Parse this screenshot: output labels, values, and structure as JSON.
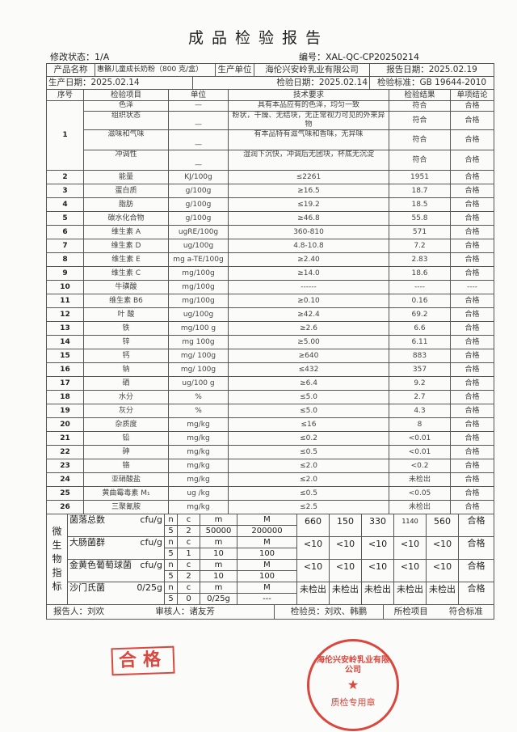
{
  "title": "成品检验报告",
  "revision": "修改状态：1/A",
  "doc_no": "编号：XAL-QC-CP20250214",
  "info": {
    "product_label": "产品名称",
    "product_value": "惠骼儿童成长奶粉（800 克/盒）",
    "maker_label": "生产单位",
    "maker_value": "海伦兴安岭乳业有限公司",
    "report_date": "报告日期：2025.02.19",
    "prod_date": "生产日期：2025.02.14",
    "test_date": "检验日期：2025.02.14",
    "standard": "检验标准：GB 19644-2010"
  },
  "headers": [
    "序号",
    "检验项目",
    "单位",
    "技术要求",
    "检验结果",
    "单项结论"
  ],
  "sensory": {
    "no": "1",
    "rows": [
      {
        "item": "色泽",
        "unit": "—",
        "req": "具有本品应有的色泽，均匀一致",
        "result": "符合",
        "concl": "合格"
      },
      {
        "item": "组织状态",
        "unit": "—",
        "req": "粉状，干燥、无结块，无正常视力可见的外来异物",
        "result": "符合",
        "concl": "合格"
      },
      {
        "item": "滋味和气味",
        "unit": "—",
        "req": "有本品特有滋气味和香味，无异味",
        "result": "符合",
        "concl": "合格"
      },
      {
        "item": "冲调性",
        "unit": "—",
        "req": "湿润下沉快，冲调后无团块，杯底无沉淀",
        "result": "符合",
        "concl": "合格"
      }
    ]
  },
  "rows": [
    {
      "no": "2",
      "item": "能量",
      "unit": "KJ/100g",
      "req": "≤2261",
      "result": "1951",
      "concl": "合格"
    },
    {
      "no": "3",
      "item": "蛋白质",
      "unit": "g/100g",
      "req": "≥16.5",
      "result": "18.7",
      "concl": "合格"
    },
    {
      "no": "4",
      "item": "脂肪",
      "unit": "g/100g",
      "req": "≤19.2",
      "result": "18.5",
      "concl": "合格"
    },
    {
      "no": "5",
      "item": "碳水化合物",
      "unit": "g/100g",
      "req": "≥46.8",
      "result": "55.8",
      "concl": "合格"
    },
    {
      "no": "6",
      "item": "维生素 A",
      "unit": "ugRE/100g",
      "req": "360-810",
      "result": "571",
      "concl": "合格"
    },
    {
      "no": "7",
      "item": "维生素 D",
      "unit": "ug/100g",
      "req": "4.8-10.8",
      "result": "7.2",
      "concl": "合格"
    },
    {
      "no": "8",
      "item": "维生素 E",
      "unit": "mg a-TE/100g",
      "req": "≥2.40",
      "result": "2.83",
      "concl": "合格"
    },
    {
      "no": "9",
      "item": "维生素 C",
      "unit": "mg/100g",
      "req": "≥14.0",
      "result": "18.6",
      "concl": "合格"
    },
    {
      "no": "10",
      "item": "牛磺酸",
      "unit": "mg/100g",
      "req": "------",
      "result": "----",
      "concl": "----"
    },
    {
      "no": "11",
      "item": "维生素 B6",
      "unit": "mg/100g",
      "req": "≥0.10",
      "result": "0.16",
      "concl": "合格"
    },
    {
      "no": "12",
      "item": "叶 酸",
      "unit": "ug/100g",
      "req": "≥42.4",
      "result": "69.2",
      "concl": "合格"
    },
    {
      "no": "13",
      "item": "铁",
      "unit": "mg/100 g",
      "req": "≥2.6",
      "result": "6.6",
      "concl": "合格"
    },
    {
      "no": "14",
      "item": "锌",
      "unit": "mg 100g",
      "req": "≥5.00",
      "result": "6.11",
      "concl": "合格"
    },
    {
      "no": "15",
      "item": "钙",
      "unit": "mg/ 100g",
      "req": "≥640",
      "result": "883",
      "concl": "合格"
    },
    {
      "no": "16",
      "item": "钠",
      "unit": "mg/ 100g",
      "req": "≤432",
      "result": "357",
      "concl": "合格"
    },
    {
      "no": "17",
      "item": "硒",
      "unit": "ug/100 g",
      "req": "≥6.4",
      "result": "9.2",
      "concl": "合格"
    },
    {
      "no": "18",
      "item": "水分",
      "unit": "%",
      "req": "≤5.0",
      "result": "2.7",
      "concl": "合格"
    },
    {
      "no": "19",
      "item": "灰分",
      "unit": "%",
      "req": "≤5.0",
      "result": "4.3",
      "concl": "合格"
    },
    {
      "no": "20",
      "item": "杂质度",
      "unit": "mg/kg",
      "req": "≤16",
      "result": "8",
      "concl": "合格"
    },
    {
      "no": "21",
      "item": "铅",
      "unit": "mg/kg",
      "req": "≤0.2",
      "result": "<0.01",
      "concl": "合格"
    },
    {
      "no": "22",
      "item": "砷",
      "unit": "mg/kg",
      "req": "≤0.5",
      "result": "<0.01",
      "concl": "合格"
    },
    {
      "no": "23",
      "item": "铬",
      "unit": "mg/kg",
      "req": "≤2.0",
      "result": "<0.2",
      "concl": "合格"
    },
    {
      "no": "24",
      "item": "亚硝酸盐",
      "unit": "mg/kg",
      "req": "≤2.0",
      "result": "未检出",
      "concl": "合格"
    },
    {
      "no": "25",
      "item": "黄曲霉毒素 M₁",
      "unit": "ug /kg",
      "req": "≤0.5",
      "result": "<0.05",
      "concl": "合格"
    },
    {
      "no": "26",
      "item": "三聚氰胺",
      "unit": "mg/kg",
      "req": "≤2.5",
      "result": "未检出",
      "concl": "合格"
    }
  ],
  "micro": {
    "label": "微生物指标",
    "plan_head": [
      "n",
      "c",
      "m",
      "M"
    ],
    "items": [
      {
        "name": "菌落总数",
        "unit": "cfu/g",
        "plan": [
          "5",
          "2",
          "50000",
          "200000"
        ],
        "results": [
          "660",
          "150",
          "330",
          "1140",
          "560"
        ],
        "concl": "合格"
      },
      {
        "name": "大肠菌群",
        "unit": "cfu/g",
        "plan": [
          "5",
          "1",
          "10",
          "100"
        ],
        "results": [
          "<10",
          "<10",
          "<10",
          "<10",
          "<10"
        ],
        "concl": "合格"
      },
      {
        "name": "金黄色葡萄球菌",
        "unit": "cfu/g",
        "plan": [
          "5",
          "2",
          "10",
          "100"
        ],
        "results": [
          "<10",
          "<10",
          "<10",
          "<10",
          "<10"
        ],
        "concl": "合格"
      },
      {
        "name": "沙门氏菌",
        "unit": "0/25g",
        "plan": [
          "5",
          "0",
          "0/25g",
          "---"
        ],
        "results": [
          "未检出",
          "未检出",
          "未检出",
          "未检出",
          "未检出"
        ],
        "concl": "合格"
      }
    ]
  },
  "footer": {
    "reporter": "报告人：刘欢",
    "reviewer": "审核人：诸友芳",
    "inspector": "检验员：刘欢、韩鹏",
    "all_items_label": "所检项目",
    "all_items_value": "符合标准"
  },
  "stamps": {
    "pass_stamp": "合格",
    "seal_ring": "海伦兴安岭乳业有限公司",
    "seal_sub": "质检专用章"
  },
  "colors": {
    "stamp": "#d9473f",
    "line": "#555555"
  }
}
